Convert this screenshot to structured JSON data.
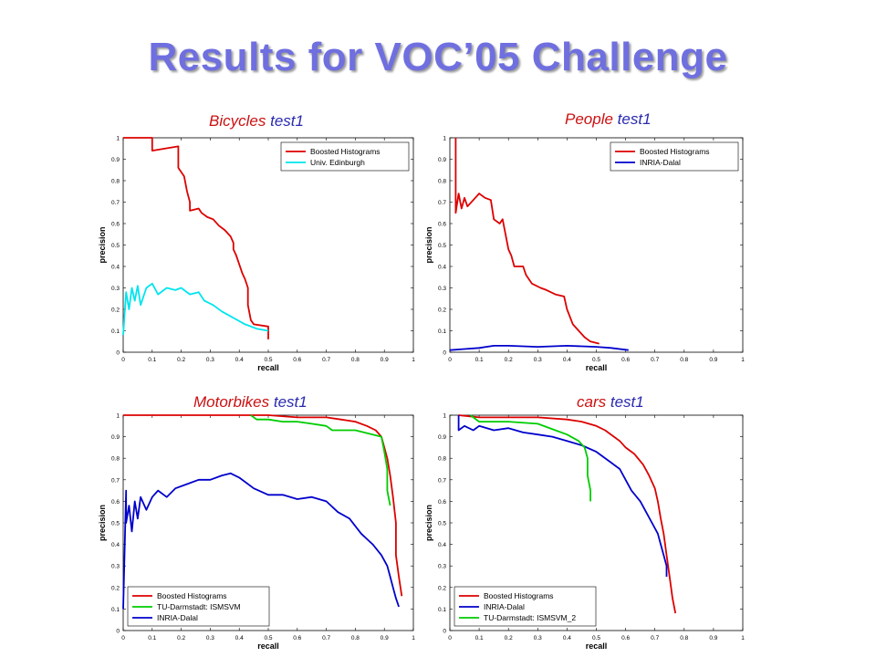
{
  "slide": {
    "title": "Results for VOC’05 Challenge"
  },
  "colors": {
    "title": "#6f6fe0",
    "category_label": "#cc1111",
    "test_label": "#2a2ab0"
  },
  "chart_data": [
    {
      "type": "line",
      "title_category": "Bicycles",
      "title_test": "test1",
      "xlabel": "recall",
      "ylabel": "precision",
      "xlim": [
        0,
        1
      ],
      "ylim": [
        0,
        1
      ],
      "xticks": [
        "0",
        "0.1",
        "0.2",
        "0.3",
        "0.4",
        "0.5",
        "0.6",
        "0.7",
        "0.8",
        "0.9",
        "1"
      ],
      "yticks": [
        "0",
        "0.1",
        "0.2",
        "0.3",
        "0.4",
        "0.5",
        "0.6",
        "0.7",
        "0.8",
        "0.9",
        "1"
      ],
      "grid": false,
      "legend_position": "top-right",
      "series": [
        {
          "name": "Boosted Histograms",
          "color": "#dd0000",
          "points": [
            [
              0,
              1
            ],
            [
              0.1,
              1
            ],
            [
              0.1,
              0.94
            ],
            [
              0.19,
              0.96
            ],
            [
              0.19,
              0.86
            ],
            [
              0.21,
              0.82
            ],
            [
              0.22,
              0.75
            ],
            [
              0.23,
              0.7
            ],
            [
              0.23,
              0.66
            ],
            [
              0.26,
              0.67
            ],
            [
              0.27,
              0.65
            ],
            [
              0.29,
              0.63
            ],
            [
              0.31,
              0.62
            ],
            [
              0.33,
              0.59
            ],
            [
              0.35,
              0.57
            ],
            [
              0.37,
              0.54
            ],
            [
              0.38,
              0.51
            ],
            [
              0.38,
              0.48
            ],
            [
              0.39,
              0.45
            ],
            [
              0.4,
              0.41
            ],
            [
              0.41,
              0.37
            ],
            [
              0.42,
              0.34
            ],
            [
              0.43,
              0.3
            ],
            [
              0.43,
              0.22
            ],
            [
              0.44,
              0.15
            ],
            [
              0.45,
              0.13
            ],
            [
              0.5,
              0.12
            ],
            [
              0.5,
              0.06
            ]
          ]
        },
        {
          "name": "Univ. Edinburgh",
          "color": "#00e5ee",
          "points": [
            [
              0,
              0.08
            ],
            [
              0.01,
              0.28
            ],
            [
              0.02,
              0.2
            ],
            [
              0.03,
              0.3
            ],
            [
              0.04,
              0.24
            ],
            [
              0.05,
              0.31
            ],
            [
              0.06,
              0.22
            ],
            [
              0.08,
              0.3
            ],
            [
              0.1,
              0.32
            ],
            [
              0.12,
              0.27
            ],
            [
              0.15,
              0.3
            ],
            [
              0.18,
              0.29
            ],
            [
              0.2,
              0.3
            ],
            [
              0.23,
              0.27
            ],
            [
              0.26,
              0.28
            ],
            [
              0.28,
              0.24
            ],
            [
              0.31,
              0.22
            ],
            [
              0.34,
              0.19
            ],
            [
              0.38,
              0.16
            ],
            [
              0.42,
              0.13
            ],
            [
              0.46,
              0.11
            ],
            [
              0.5,
              0.1
            ]
          ]
        }
      ]
    },
    {
      "type": "line",
      "title_category": "People",
      "title_test": "test1",
      "xlabel": "recall",
      "ylabel": "precision",
      "xlim": [
        0,
        1
      ],
      "ylim": [
        0,
        1
      ],
      "xticks": [
        "0",
        "0.1",
        "0.2",
        "0.3",
        "0.4",
        "0.5",
        "0.6",
        "0.7",
        "0.8",
        "0.9",
        "1"
      ],
      "yticks": [
        "0",
        "0.1",
        "0.2",
        "0.3",
        "0.4",
        "0.5",
        "0.6",
        "0.7",
        "0.8",
        "0.9",
        "1"
      ],
      "grid": false,
      "legend_position": "top-right",
      "series": [
        {
          "name": "Boosted Histograms",
          "color": "#dd0000",
          "points": [
            [
              0.02,
              1
            ],
            [
              0.02,
              0.65
            ],
            [
              0.03,
              0.74
            ],
            [
              0.04,
              0.67
            ],
            [
              0.05,
              0.72
            ],
            [
              0.06,
              0.68
            ],
            [
              0.08,
              0.71
            ],
            [
              0.1,
              0.74
            ],
            [
              0.12,
              0.72
            ],
            [
              0.14,
              0.71
            ],
            [
              0.15,
              0.62
            ],
            [
              0.17,
              0.6
            ],
            [
              0.18,
              0.62
            ],
            [
              0.19,
              0.55
            ],
            [
              0.2,
              0.48
            ],
            [
              0.21,
              0.45
            ],
            [
              0.22,
              0.4
            ],
            [
              0.25,
              0.4
            ],
            [
              0.26,
              0.36
            ],
            [
              0.28,
              0.32
            ],
            [
              0.31,
              0.3
            ],
            [
              0.33,
              0.29
            ],
            [
              0.36,
              0.27
            ],
            [
              0.39,
              0.26
            ],
            [
              0.4,
              0.2
            ],
            [
              0.42,
              0.13
            ],
            [
              0.44,
              0.1
            ],
            [
              0.46,
              0.07
            ],
            [
              0.48,
              0.05
            ],
            [
              0.51,
              0.04
            ]
          ]
        },
        {
          "name": "INRIA-Dalal",
          "color": "#0000cc",
          "points": [
            [
              0,
              0.01
            ],
            [
              0.05,
              0.015
            ],
            [
              0.1,
              0.02
            ],
            [
              0.15,
              0.03
            ],
            [
              0.2,
              0.03
            ],
            [
              0.3,
              0.025
            ],
            [
              0.4,
              0.03
            ],
            [
              0.5,
              0.025
            ],
            [
              0.55,
              0.02
            ],
            [
              0.61,
              0.01
            ]
          ]
        }
      ]
    },
    {
      "type": "line",
      "title_category": "Motorbikes",
      "title_test": "test1",
      "xlabel": "recall",
      "ylabel": "precision",
      "xlim": [
        0,
        1
      ],
      "ylim": [
        0,
        1
      ],
      "xticks": [
        "0",
        "0.1",
        "0.2",
        "0.3",
        "0.4",
        "0.5",
        "0.6",
        "0.7",
        "0.8",
        "0.9",
        "1"
      ],
      "yticks": [
        "0",
        "0.1",
        "0.2",
        "0.3",
        "0.4",
        "0.5",
        "0.6",
        "0.7",
        "0.8",
        "0.9",
        "1"
      ],
      "grid": false,
      "legend_position": "bottom-left",
      "series": [
        {
          "name": "Boosted Histograms",
          "color": "#dd0000",
          "points": [
            [
              0,
              1
            ],
            [
              0.5,
              1
            ],
            [
              0.6,
              0.99
            ],
            [
              0.7,
              0.99
            ],
            [
              0.75,
              0.98
            ],
            [
              0.8,
              0.97
            ],
            [
              0.84,
              0.95
            ],
            [
              0.87,
              0.93
            ],
            [
              0.89,
              0.9
            ],
            [
              0.9,
              0.85
            ],
            [
              0.91,
              0.8
            ],
            [
              0.92,
              0.72
            ],
            [
              0.93,
              0.62
            ],
            [
              0.94,
              0.5
            ],
            [
              0.94,
              0.35
            ],
            [
              0.95,
              0.25
            ],
            [
              0.96,
              0.16
            ]
          ]
        },
        {
          "name": "TU-Darmstadt: ISMSVM",
          "color": "#00cc00",
          "points": [
            [
              0.44,
              1
            ],
            [
              0.46,
              0.98
            ],
            [
              0.5,
              0.98
            ],
            [
              0.55,
              0.97
            ],
            [
              0.6,
              0.97
            ],
            [
              0.65,
              0.96
            ],
            [
              0.7,
              0.95
            ],
            [
              0.72,
              0.93
            ],
            [
              0.8,
              0.93
            ],
            [
              0.86,
              0.91
            ],
            [
              0.89,
              0.9
            ],
            [
              0.9,
              0.83
            ],
            [
              0.91,
              0.75
            ],
            [
              0.91,
              0.65
            ],
            [
              0.92,
              0.58
            ]
          ]
        },
        {
          "name": "INRIA-Dalal",
          "color": "#0000cc",
          "points": [
            [
              0,
              0.1
            ],
            [
              0.01,
              0.65
            ],
            [
              0.01,
              0.5
            ],
            [
              0.02,
              0.58
            ],
            [
              0.03,
              0.46
            ],
            [
              0.04,
              0.6
            ],
            [
              0.05,
              0.52
            ],
            [
              0.06,
              0.62
            ],
            [
              0.08,
              0.56
            ],
            [
              0.1,
              0.62
            ],
            [
              0.12,
              0.65
            ],
            [
              0.15,
              0.62
            ],
            [
              0.18,
              0.66
            ],
            [
              0.22,
              0.68
            ],
            [
              0.26,
              0.7
            ],
            [
              0.3,
              0.7
            ],
            [
              0.34,
              0.72
            ],
            [
              0.37,
              0.73
            ],
            [
              0.4,
              0.71
            ],
            [
              0.45,
              0.66
            ],
            [
              0.5,
              0.63
            ],
            [
              0.55,
              0.63
            ],
            [
              0.6,
              0.61
            ],
            [
              0.65,
              0.62
            ],
            [
              0.7,
              0.6
            ],
            [
              0.74,
              0.55
            ],
            [
              0.78,
              0.52
            ],
            [
              0.82,
              0.45
            ],
            [
              0.86,
              0.4
            ],
            [
              0.89,
              0.35
            ],
            [
              0.91,
              0.3
            ],
            [
              0.92,
              0.25
            ],
            [
              0.93,
              0.2
            ],
            [
              0.94,
              0.15
            ],
            [
              0.95,
              0.11
            ]
          ]
        }
      ]
    },
    {
      "type": "line",
      "title_category": "cars",
      "title_test": "test1",
      "xlabel": "recall",
      "ylabel": "precision",
      "xlim": [
        0,
        1
      ],
      "ylim": [
        0,
        1
      ],
      "xticks": [
        "0",
        "0.1",
        "0.2",
        "0.3",
        "0.4",
        "0.5",
        "0.6",
        "0.7",
        "0.8",
        "0.9",
        "1"
      ],
      "yticks": [
        "0",
        "0.1",
        "0.2",
        "0.3",
        "0.4",
        "0.5",
        "0.6",
        "0.7",
        "0.8",
        "0.9",
        "1"
      ],
      "grid": false,
      "legend_position": "bottom-left",
      "series": [
        {
          "name": "Boosted Histograms",
          "color": "#dd0000",
          "points": [
            [
              0.03,
              1
            ],
            [
              0.1,
              0.99
            ],
            [
              0.2,
              0.99
            ],
            [
              0.3,
              0.99
            ],
            [
              0.4,
              0.98
            ],
            [
              0.45,
              0.97
            ],
            [
              0.5,
              0.95
            ],
            [
              0.53,
              0.93
            ],
            [
              0.56,
              0.9
            ],
            [
              0.58,
              0.88
            ],
            [
              0.6,
              0.85
            ],
            [
              0.63,
              0.82
            ],
            [
              0.66,
              0.77
            ],
            [
              0.68,
              0.72
            ],
            [
              0.7,
              0.66
            ],
            [
              0.71,
              0.6
            ],
            [
              0.72,
              0.52
            ],
            [
              0.73,
              0.45
            ],
            [
              0.74,
              0.35
            ],
            [
              0.75,
              0.25
            ],
            [
              0.76,
              0.15
            ],
            [
              0.77,
              0.08
            ]
          ]
        },
        {
          "name": "INRIA-Dalal",
          "color": "#0000cc",
          "points": [
            [
              0.03,
              1
            ],
            [
              0.03,
              0.93
            ],
            [
              0.05,
              0.95
            ],
            [
              0.08,
              0.93
            ],
            [
              0.1,
              0.95
            ],
            [
              0.15,
              0.93
            ],
            [
              0.2,
              0.94
            ],
            [
              0.25,
              0.92
            ],
            [
              0.3,
              0.91
            ],
            [
              0.35,
              0.9
            ],
            [
              0.4,
              0.88
            ],
            [
              0.45,
              0.86
            ],
            [
              0.5,
              0.83
            ],
            [
              0.55,
              0.78
            ],
            [
              0.58,
              0.75
            ],
            [
              0.6,
              0.7
            ],
            [
              0.62,
              0.65
            ],
            [
              0.65,
              0.6
            ],
            [
              0.67,
              0.55
            ],
            [
              0.69,
              0.5
            ],
            [
              0.71,
              0.45
            ],
            [
              0.72,
              0.4
            ],
            [
              0.73,
              0.35
            ],
            [
              0.74,
              0.3
            ],
            [
              0.74,
              0.25
            ]
          ]
        },
        {
          "name": "TU-Darmstadt: ISMSVM_2",
          "color": "#00cc00",
          "points": [
            [
              0.07,
              1
            ],
            [
              0.1,
              0.97
            ],
            [
              0.2,
              0.97
            ],
            [
              0.3,
              0.96
            ],
            [
              0.36,
              0.93
            ],
            [
              0.4,
              0.91
            ],
            [
              0.44,
              0.88
            ],
            [
              0.46,
              0.85
            ],
            [
              0.47,
              0.8
            ],
            [
              0.47,
              0.72
            ],
            [
              0.48,
              0.65
            ],
            [
              0.48,
              0.6
            ]
          ]
        }
      ]
    }
  ]
}
